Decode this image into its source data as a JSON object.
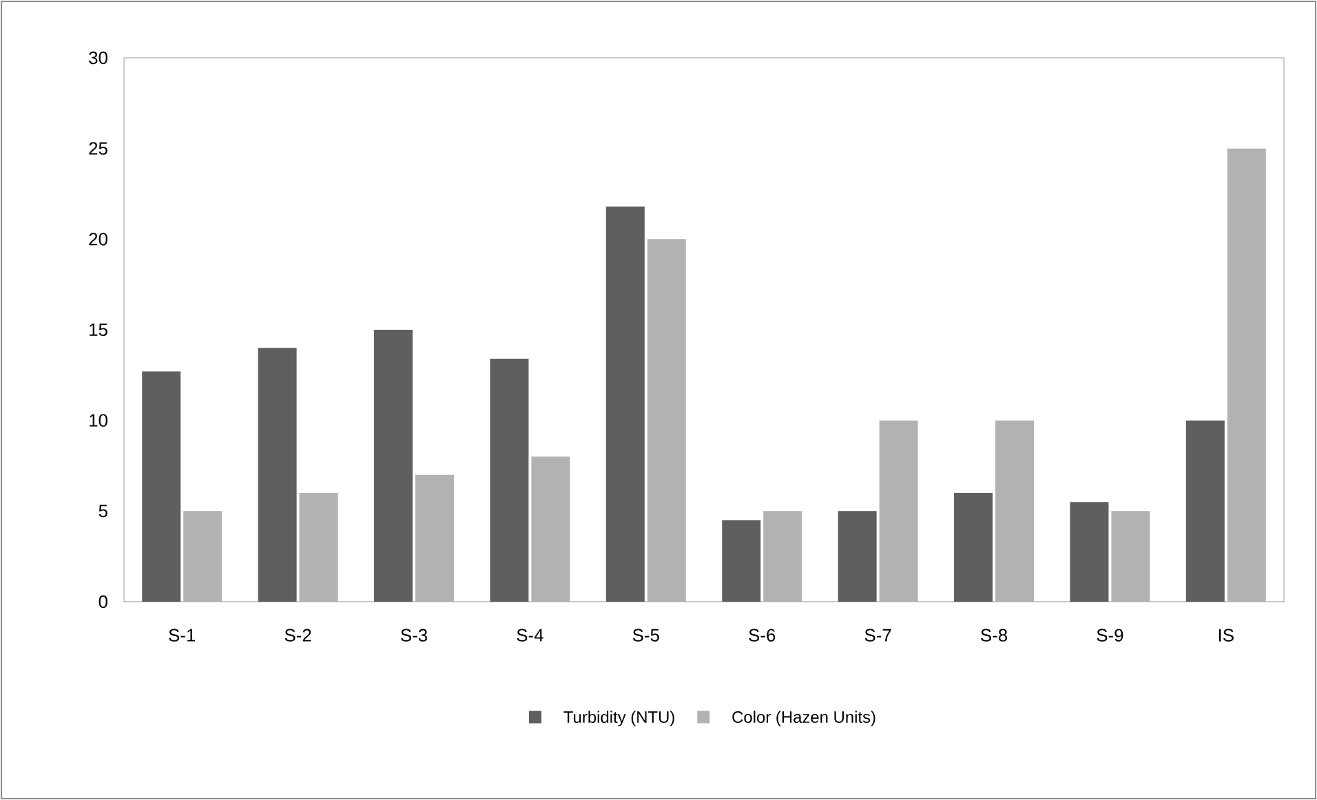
{
  "chart_data": {
    "type": "bar",
    "categories": [
      "S-1",
      "S-2",
      "S-3",
      "S-4",
      "S-5",
      "S-6",
      "S-7",
      "S-8",
      "S-9",
      "IS"
    ],
    "series": [
      {
        "name": "Turbidity (NTU)",
        "color": "#5f5f5f",
        "values": [
          12.7,
          14.0,
          15.0,
          13.4,
          21.8,
          4.5,
          5.0,
          6.0,
          5.5,
          10.0
        ]
      },
      {
        "name": "Color (Hazen Units)",
        "color": "#b2b2b2",
        "values": [
          5,
          6,
          7,
          8,
          20,
          5,
          10,
          10,
          5,
          25
        ]
      }
    ],
    "ylim": [
      0,
      30
    ],
    "yticks": [
      0,
      5,
      10,
      15,
      20,
      25,
      30
    ],
    "grid": false,
    "legend": "bottom"
  }
}
